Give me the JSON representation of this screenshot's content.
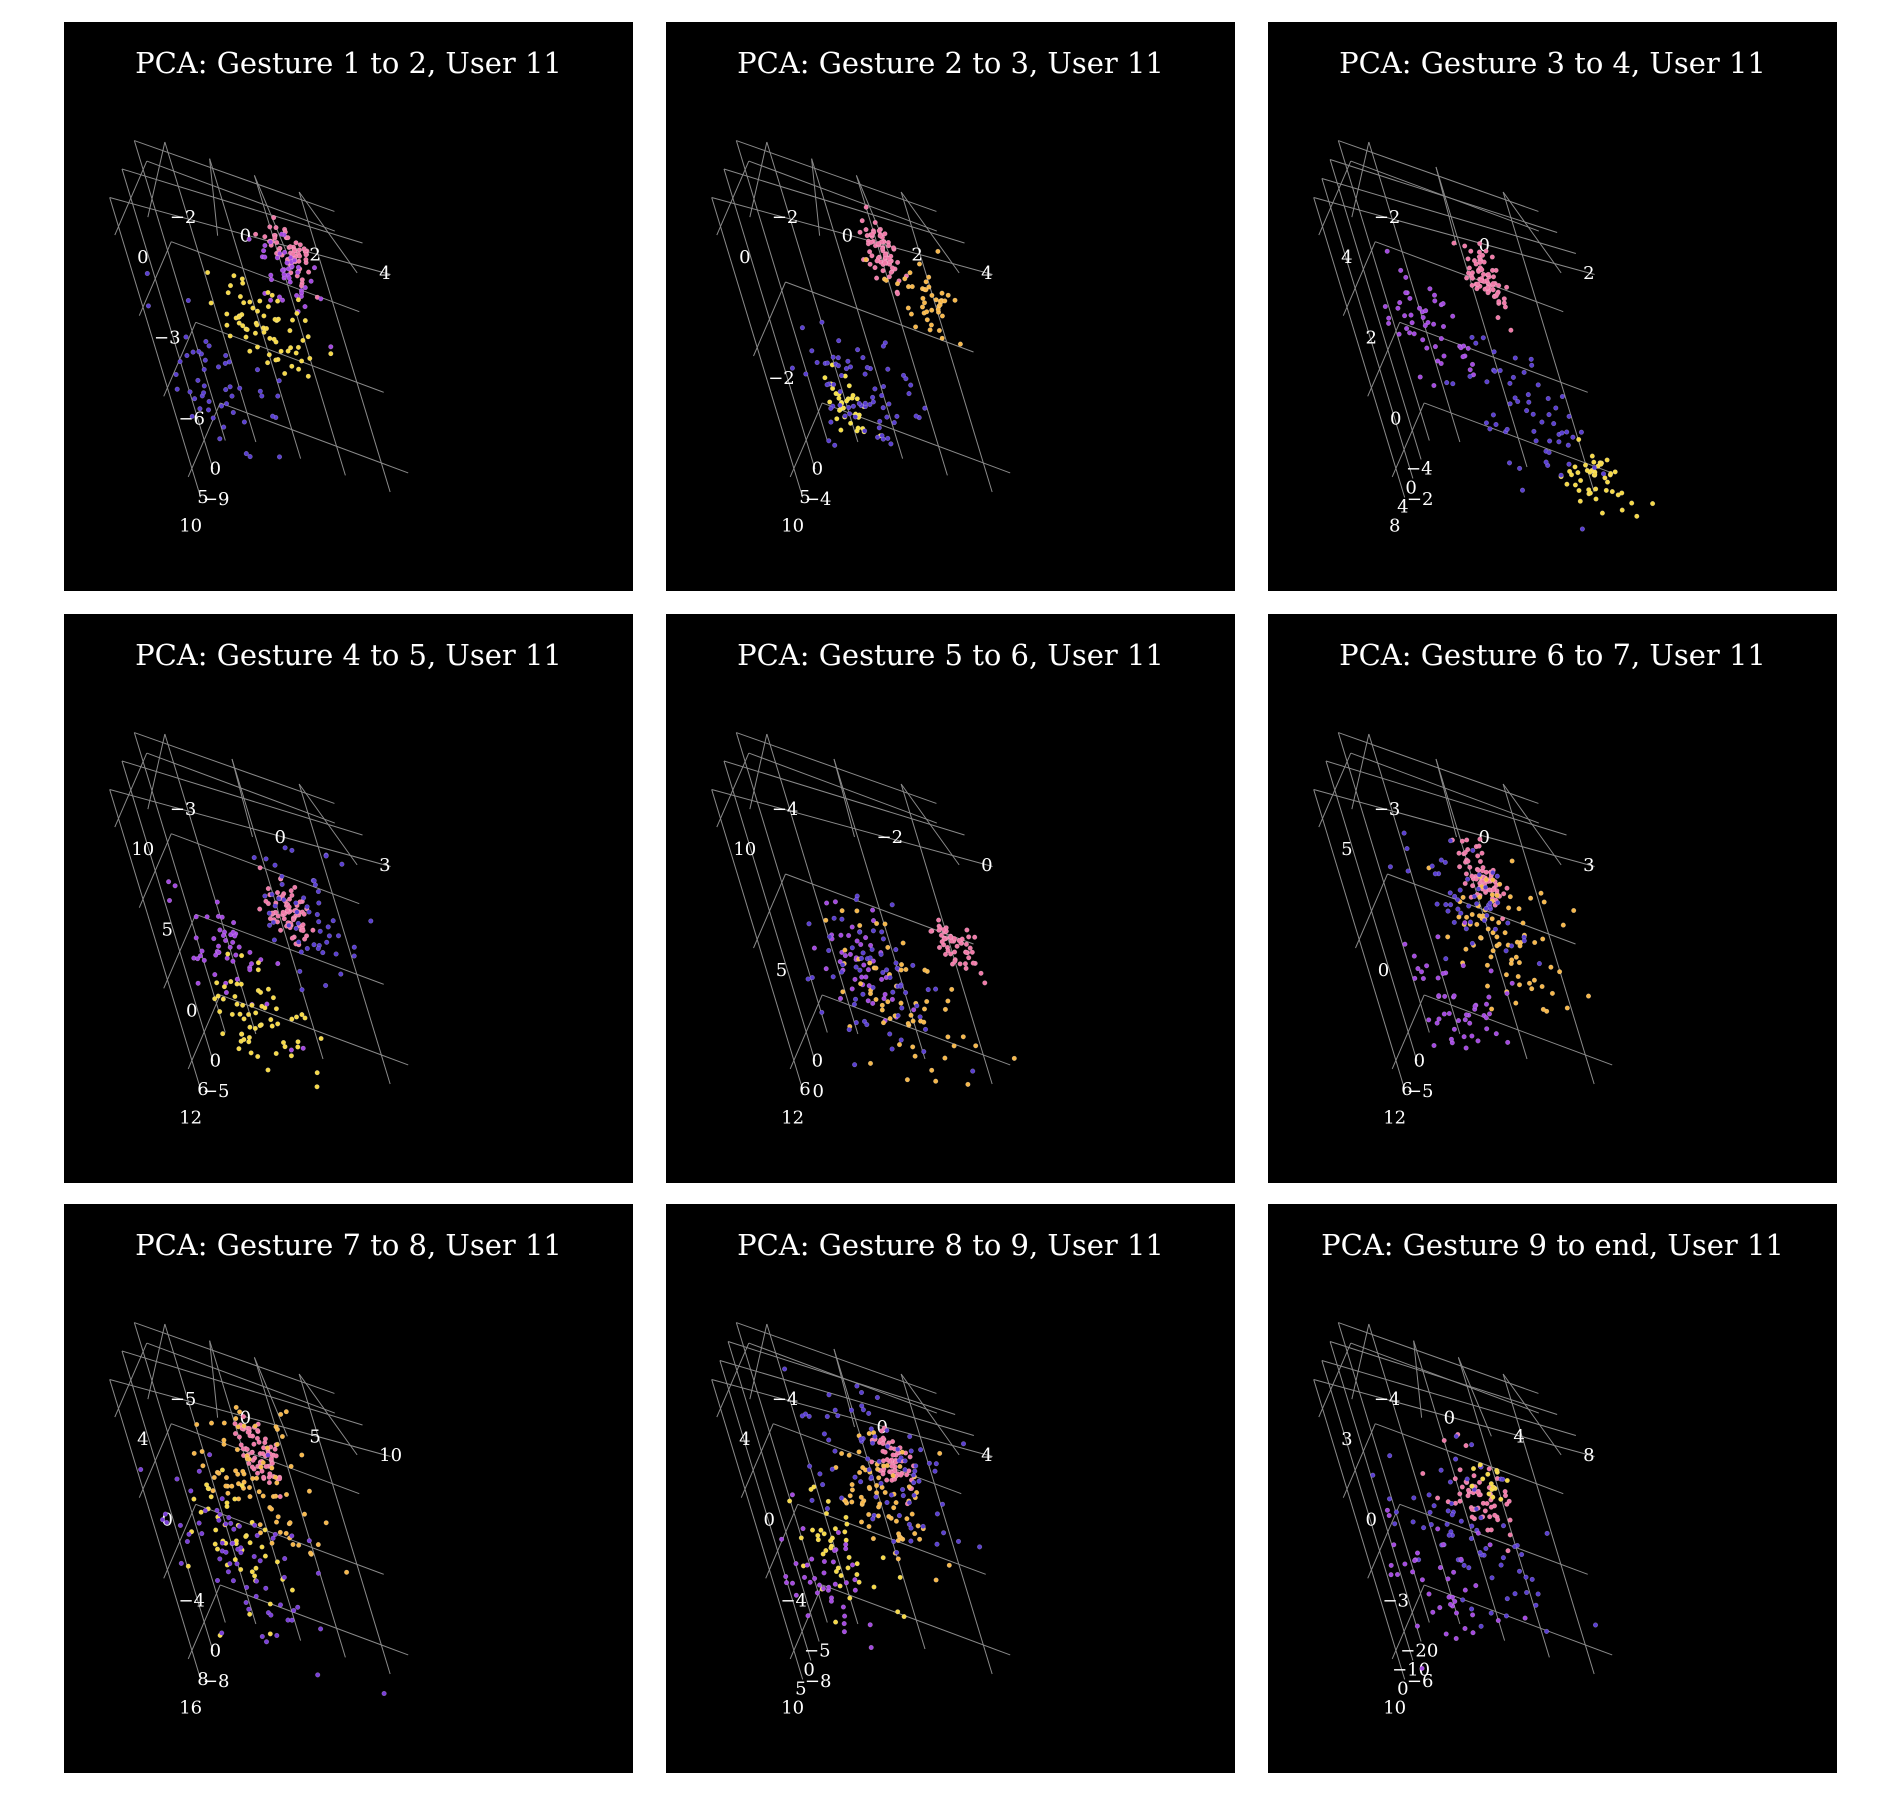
{
  "chart_data": [
    {
      "type": "scatter",
      "title": "PCA: Gesture 1 to 2, User 11",
      "x_ticks": [
        "0",
        "5",
        "10"
      ],
      "y_ticks": [
        "0",
        "−3",
        "−6",
        "−9"
      ],
      "z_ticks": [
        "4",
        "2",
        "0",
        "−2"
      ],
      "clusters": [
        {
          "x": 1.5,
          "y": -1.0,
          "z": 2.5,
          "spread": 0.9,
          "n": 70,
          "color": "#f07aa8"
        },
        {
          "x": 3.0,
          "y": -1.5,
          "z": 2.0,
          "spread": 1.4,
          "n": 45,
          "color": "#a349e0"
        },
        {
          "x": 9.0,
          "y": -2.5,
          "z": 0.5,
          "spread": 1.6,
          "n": 70,
          "color": "#f6d948"
        },
        {
          "x": 8.0,
          "y": -5.5,
          "z": -1.5,
          "spread": 2.0,
          "n": 50,
          "color": "#5a3fd0"
        }
      ]
    },
    {
      "type": "scatter",
      "title": "PCA: Gesture 2 to 3, User 11",
      "x_ticks": [
        "0",
        "5",
        "10"
      ],
      "y_ticks": [
        "0",
        "−2",
        "−4"
      ],
      "z_ticks": [
        "4",
        "2",
        "0",
        "−2"
      ],
      "clusters": [
        {
          "x": 1.0,
          "y": -0.5,
          "z": 2.0,
          "spread": 1.0,
          "n": 70,
          "color": "#f07aa8"
        },
        {
          "x": 8.5,
          "y": -0.5,
          "z": 3.0,
          "spread": 1.2,
          "n": 45,
          "color": "#f7b84b"
        },
        {
          "x": 2.0,
          "y": -3.5,
          "z": -1.5,
          "spread": 1.0,
          "n": 35,
          "color": "#f6e048"
        },
        {
          "x": 9.0,
          "y": -2.5,
          "z": -0.5,
          "spread": 2.2,
          "n": 70,
          "color": "#5a3fd0"
        }
      ]
    },
    {
      "type": "scatter",
      "title": "PCA: Gesture 3 to 4, User 11",
      "x_ticks": [
        "−4",
        "0",
        "4",
        "8"
      ],
      "y_ticks": [
        "4",
        "2",
        "0",
        "−2"
      ],
      "z_ticks": [
        "2",
        "0",
        "−2"
      ],
      "clusters": [
        {
          "x": -3.0,
          "y": 2.5,
          "z": 0.5,
          "spread": 1.0,
          "n": 70,
          "color": "#f07aa8"
        },
        {
          "x": 0.0,
          "y": 1.0,
          "z": -1.5,
          "spread": 1.8,
          "n": 50,
          "color": "#a349e0"
        },
        {
          "x": 7.0,
          "y": -1.0,
          "z": 1.5,
          "spread": 1.2,
          "n": 45,
          "color": "#f6d948"
        },
        {
          "x": 4.0,
          "y": 0.0,
          "z": 0.5,
          "spread": 2.5,
          "n": 60,
          "color": "#5a3fd0"
        }
      ]
    },
    {
      "type": "scatter",
      "title": "PCA: Gesture 4 to 5, User 11",
      "x_ticks": [
        "0",
        "6",
        "12"
      ],
      "y_ticks": [
        "10",
        "5",
        "0",
        "−5"
      ],
      "z_ticks": [
        "3",
        "0",
        "−3"
      ],
      "clusters": [
        {
          "x": 0.5,
          "y": 3.0,
          "z": 0.5,
          "spread": 1.2,
          "n": 70,
          "color": "#f07aa8"
        },
        {
          "x": 3.0,
          "y": 0.0,
          "z": -2.5,
          "spread": 2.0,
          "n": 50,
          "color": "#a349e0"
        },
        {
          "x": 12.0,
          "y": -1.0,
          "z": -1.5,
          "spread": 2.0,
          "n": 60,
          "color": "#f6d948"
        },
        {
          "x": 9.0,
          "y": 6.0,
          "z": 1.0,
          "spread": 2.2,
          "n": 55,
          "color": "#5a3fd0"
        }
      ]
    },
    {
      "type": "scatter",
      "title": "PCA: Gesture 5 to 6, User 11",
      "x_ticks": [
        "0",
        "6",
        "12"
      ],
      "y_ticks": [
        "10",
        "5",
        "0"
      ],
      "z_ticks": [
        "0",
        "−2",
        "−4"
      ],
      "clusters": [
        {
          "x": 0.5,
          "y": 5.0,
          "z": 0.0,
          "spread": 1.0,
          "n": 55,
          "color": "#f07aa8"
        },
        {
          "x": 2.0,
          "y": 3.0,
          "z": -3.0,
          "spread": 1.8,
          "n": 45,
          "color": "#a349e0"
        },
        {
          "x": 6.0,
          "y": 3.0,
          "z": -2.0,
          "spread": 2.5,
          "n": 60,
          "color": "#f6b84b"
        },
        {
          "x": 10.0,
          "y": 4.0,
          "z": -2.5,
          "spread": 2.5,
          "n": 60,
          "color": "#5a3fd0"
        }
      ]
    },
    {
      "type": "scatter",
      "title": "PCA: Gesture 6 to 7, User 11",
      "x_ticks": [
        "0",
        "6",
        "12"
      ],
      "y_ticks": [
        "5",
        "0",
        "−5"
      ],
      "z_ticks": [
        "3",
        "0",
        "−3"
      ],
      "clusters": [
        {
          "x": 0.5,
          "y": 2.0,
          "z": 0.5,
          "spread": 1.0,
          "n": 70,
          "color": "#f07aa8"
        },
        {
          "x": 8.0,
          "y": 1.0,
          "z": 0.5,
          "spread": 2.4,
          "n": 80,
          "color": "#f7b84b"
        },
        {
          "x": 6.0,
          "y": -3.0,
          "z": -2.0,
          "spread": 2.2,
          "n": 50,
          "color": "#a349e0"
        },
        {
          "x": 12.0,
          "y": 3.0,
          "z": -0.5,
          "spread": 2.0,
          "n": 50,
          "color": "#5a3fd0"
        }
      ]
    },
    {
      "type": "scatter",
      "title": "PCA: Gesture 7 to 8, User 11",
      "x_ticks": [
        "0",
        "8",
        "16"
      ],
      "y_ticks": [
        "4",
        "0",
        "−4",
        "−8"
      ],
      "z_ticks": [
        "10",
        "5",
        "0",
        "−5"
      ],
      "clusters": [
        {
          "x": 1.0,
          "y": 1.0,
          "z": 2.0,
          "spread": 1.2,
          "n": 70,
          "color": "#f07aa8"
        },
        {
          "x": 10.0,
          "y": 1.0,
          "z": 1.0,
          "spread": 2.5,
          "n": 80,
          "color": "#f7b84b"
        },
        {
          "x": 4.0,
          "y": -4.0,
          "z": -3.0,
          "spread": 2.2,
          "n": 45,
          "color": "#f6d948"
        },
        {
          "x": 10.0,
          "y": -3.0,
          "z": -2.0,
          "spread": 2.8,
          "n": 70,
          "color": "#7a3fd8"
        }
      ]
    },
    {
      "type": "scatter",
      "title": "PCA: Gesture 8 to 9, User 11",
      "x_ticks": [
        "−5",
        "0",
        "5",
        "10"
      ],
      "y_ticks": [
        "4",
        "0",
        "−4",
        "−8"
      ],
      "z_ticks": [
        "4",
        "0",
        "−4"
      ],
      "clusters": [
        {
          "x": -4.0,
          "y": 1.0,
          "z": 1.5,
          "spread": 1.0,
          "n": 60,
          "color": "#f07aa8"
        },
        {
          "x": 3.0,
          "y": 0.0,
          "z": 0.5,
          "spread": 2.2,
          "n": 70,
          "color": "#f7b84b"
        },
        {
          "x": 1.0,
          "y": -4.0,
          "z": -3.0,
          "spread": 2.0,
          "n": 40,
          "color": "#f6d948"
        },
        {
          "x": 6.0,
          "y": 2.0,
          "z": 1.0,
          "spread": 3.0,
          "n": 80,
          "color": "#5a3fd0"
        },
        {
          "x": 5.0,
          "y": -5.0,
          "z": -4.0,
          "spread": 2.0,
          "n": 40,
          "color": "#a349e0"
        }
      ]
    },
    {
      "type": "scatter",
      "title": "PCA: Gesture 9 to end, User 11",
      "x_ticks": [
        "−20",
        "−10",
        "0",
        "10"
      ],
      "y_ticks": [
        "3",
        "0",
        "−3",
        "−6"
      ],
      "z_ticks": [
        "8",
        "4",
        "0",
        "−4"
      ],
      "clusters": [
        {
          "x": 0.0,
          "y": 0.5,
          "z": 2.0,
          "spread": 1.4,
          "n": 60,
          "color": "#f07aa8"
        },
        {
          "x": 4.0,
          "y": -1.0,
          "z": 0.5,
          "spread": 2.8,
          "n": 70,
          "color": "#5a3fd0"
        },
        {
          "x": 0.0,
          "y": -4.0,
          "z": -2.5,
          "spread": 2.4,
          "n": 40,
          "color": "#a349e0"
        },
        {
          "x": -2.0,
          "y": 1.0,
          "z": 3.0,
          "spread": 1.0,
          "n": 15,
          "color": "#f6d948"
        }
      ]
    }
  ]
}
